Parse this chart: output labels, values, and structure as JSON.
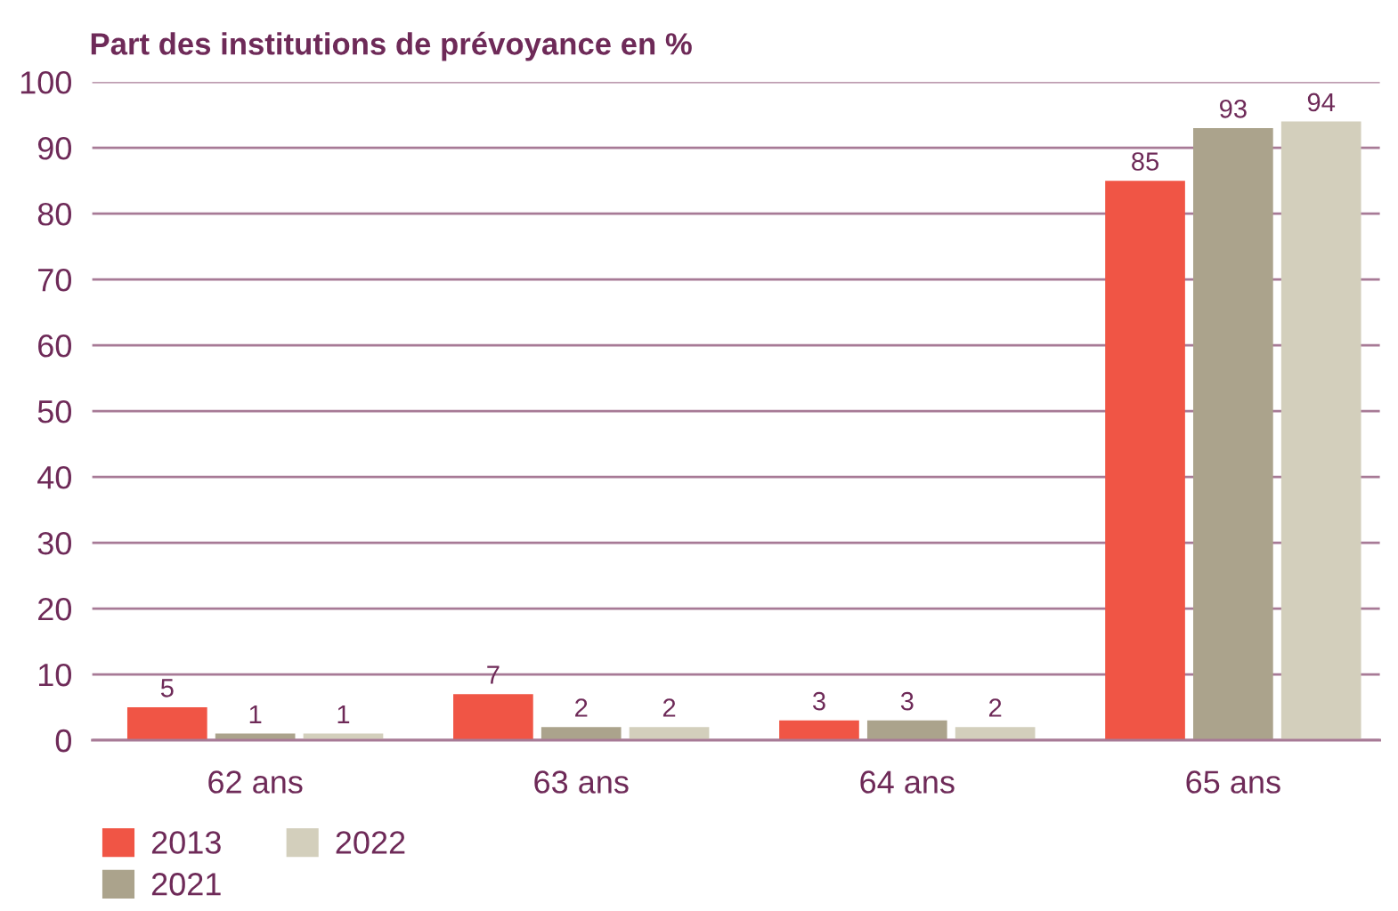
{
  "chart_data": {
    "type": "bar",
    "title": "Part des institutions de prévoyance en %",
    "categories": [
      "62 ans",
      "63 ans",
      "64 ans",
      "65 ans"
    ],
    "series": [
      {
        "name": "2013",
        "color": "#f05545",
        "values": [
          5,
          7,
          3,
          85
        ]
      },
      {
        "name": "2021",
        "color": "#aba38c",
        "values": [
          1,
          2,
          3,
          93
        ]
      },
      {
        "name": "2022",
        "color": "#d3cfbc",
        "values": [
          1,
          2,
          2,
          94
        ]
      }
    ],
    "ylim": [
      0,
      100
    ],
    "yticks": [
      0,
      10,
      20,
      30,
      40,
      50,
      60,
      70,
      80,
      90,
      100
    ],
    "grid": "y",
    "legend": "bottom left",
    "data_labels": true
  }
}
